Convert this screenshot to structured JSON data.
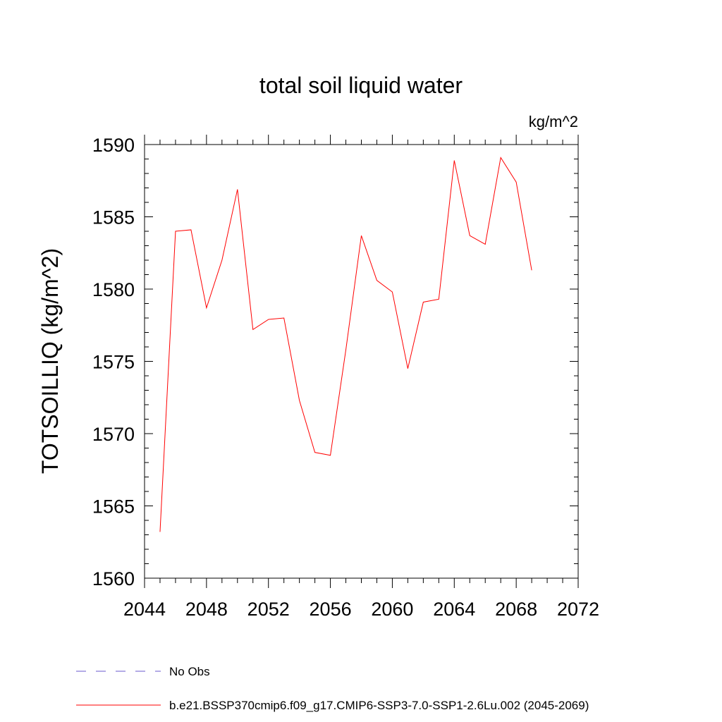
{
  "chart_data": {
    "type": "line",
    "title": "total soil liquid water",
    "units_label": "kg/m^2",
    "ylabel": "TOTSOILLIQ  (kg/m^2)",
    "xlabel": "",
    "xlim": [
      2044,
      2072
    ],
    "ylim": [
      1560,
      1590
    ],
    "x_ticks": [
      "2044",
      "2048",
      "2052",
      "2056",
      "2060",
      "2064",
      "2068",
      "2072"
    ],
    "y_ticks": [
      "1560",
      "1565",
      "1570",
      "1575",
      "1580",
      "1585",
      "1590"
    ],
    "grid": false,
    "legend_position": "bottom",
    "series": [
      {
        "name": "b.e21.BSSP370cmip6.f09_g17.CMIP6-SSP3-7.0-SSP1-2.6Lu.002 (2045-2069)",
        "color": "#ff0000",
        "dash": "solid",
        "x": [
          2045,
          2046,
          2047,
          2048,
          2049,
          2050,
          2051,
          2052,
          2053,
          2054,
          2055,
          2056,
          2057,
          2058,
          2059,
          2060,
          2061,
          2062,
          2063,
          2064,
          2065,
          2066,
          2067,
          2068,
          2069
        ],
        "values": [
          1563.2,
          1584.0,
          1584.1,
          1578.7,
          1582.0,
          1586.9,
          1577.2,
          1577.9,
          1578.0,
          1572.3,
          1568.7,
          1568.5,
          1575.8,
          1583.7,
          1580.6,
          1579.8,
          1574.5,
          1579.1,
          1579.3,
          1588.9,
          1583.7,
          1583.1,
          1589.1,
          1587.4,
          1581.3
        ]
      }
    ],
    "legend": [
      {
        "label": "No Obs",
        "color": "#6a5acd",
        "dash": "dashed"
      },
      {
        "label": "b.e21.BSSP370cmip6.f09_g17.CMIP6-SSP3-7.0-SSP1-2.6Lu.002 (2045-2069)",
        "color": "#ff0000",
        "dash": "solid"
      }
    ]
  }
}
